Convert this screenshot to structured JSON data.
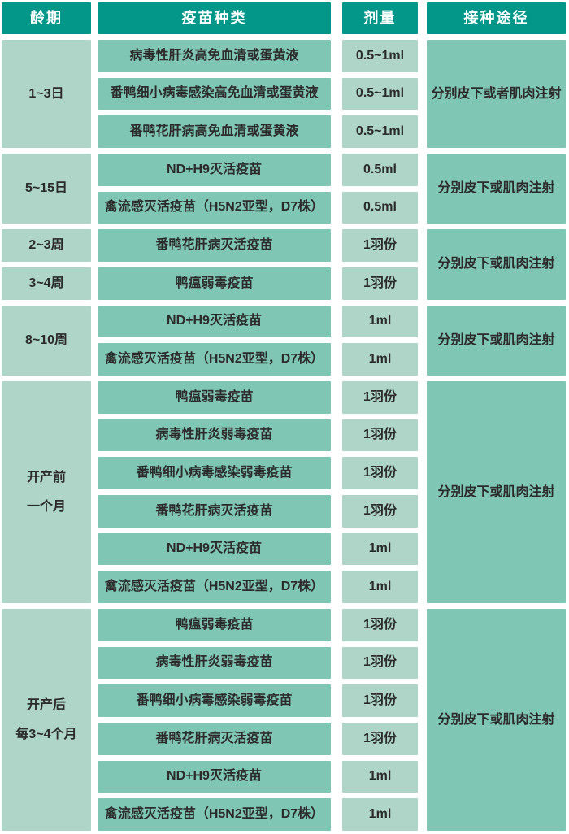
{
  "table": {
    "headers": [
      {
        "id": "age",
        "label": "龄期"
      },
      {
        "id": "vaccine",
        "label": "疫苗种类"
      },
      {
        "id": "dose",
        "label": "剂量"
      },
      {
        "id": "route",
        "label": "接种途径"
      }
    ],
    "sections": [
      {
        "ages": [
          {
            "lines": [
              "1~3日"
            ],
            "span": 3
          }
        ],
        "route": "分别皮下或者肌肉注射",
        "rows": [
          {
            "vaccine": "病毒性肝炎高免血清或蛋黄液",
            "dose": "0.5~1ml"
          },
          {
            "vaccine": "番鸭细小病毒感染高免血清或蛋黄液",
            "dose": "0.5~1ml"
          },
          {
            "vaccine": "番鸭花肝病高免血清或蛋黄液",
            "dose": "0.5~1ml"
          }
        ]
      },
      {
        "ages": [
          {
            "lines": [
              "5~15日"
            ],
            "span": 2
          }
        ],
        "route": "分别皮下或肌肉注射",
        "rows": [
          {
            "vaccine": "ND+H9灭活疫苗",
            "dose": "0.5ml"
          },
          {
            "vaccine": "禽流感灭活疫苗（H5N2亚型，D7株）",
            "dose": "0.5ml"
          }
        ]
      },
      {
        "ages": [
          {
            "lines": [
              "2~3周"
            ],
            "span": 1
          },
          {
            "lines": [
              "3~4周"
            ],
            "span": 1
          }
        ],
        "route": "分别皮下或肌肉注射",
        "rows": [
          {
            "vaccine": "番鸭花肝病灭活疫苗",
            "dose": "1羽份"
          },
          {
            "vaccine": "鸭瘟弱毒疫苗",
            "dose": "1羽份"
          }
        ]
      },
      {
        "ages": [
          {
            "lines": [
              "8~10周"
            ],
            "span": 2
          }
        ],
        "route": "分别皮下或肌肉注射",
        "rows": [
          {
            "vaccine": "ND+H9灭活疫苗",
            "dose": "1ml"
          },
          {
            "vaccine": "禽流感灭活疫苗（H5N2亚型，D7株）",
            "dose": "1ml"
          }
        ]
      },
      {
        "ages": [
          {
            "lines": [
              "开产前",
              "一个月"
            ],
            "span": 6
          }
        ],
        "route": "分别皮下或肌肉注射",
        "rows": [
          {
            "vaccine": "鸭瘟弱毒疫苗",
            "dose": "1羽份"
          },
          {
            "vaccine": "病毒性肝炎弱毒疫苗",
            "dose": "1羽份"
          },
          {
            "vaccine": "番鸭细小病毒感染弱毒疫苗",
            "dose": "1羽份"
          },
          {
            "vaccine": "番鸭花肝病灭活疫苗",
            "dose": "1羽份"
          },
          {
            "vaccine": "ND+H9灭活疫苗",
            "dose": "1ml"
          },
          {
            "vaccine": "禽流感灭活疫苗（H5N2亚型，D7株）",
            "dose": "1ml"
          }
        ]
      },
      {
        "ages": [
          {
            "lines": [
              "开产后",
              "每3~4个月"
            ],
            "span": 6
          }
        ],
        "route": "分别皮下或肌肉注射",
        "rows": [
          {
            "vaccine": "鸭瘟弱毒疫苗",
            "dose": "1羽份"
          },
          {
            "vaccine": "病毒性肝炎弱毒疫苗",
            "dose": "1羽份"
          },
          {
            "vaccine": "番鸭细小病毒感染弱毒疫苗",
            "dose": "1羽份"
          },
          {
            "vaccine": "番鸭花肝病灭活疫苗",
            "dose": "1羽份"
          },
          {
            "vaccine": "ND+H9灭活疫苗",
            "dose": "1ml"
          },
          {
            "vaccine": "禽流感灭活疫苗（H5N2亚型，D7株）",
            "dose": "1ml"
          }
        ]
      }
    ]
  },
  "colors": {
    "header_bg": "#029789",
    "light_cell": "#aed5c8",
    "medium_cell": "#80c6b4",
    "header_text": "#ffffff",
    "body_text": "#2b2b2b",
    "background": "#ffffff"
  }
}
